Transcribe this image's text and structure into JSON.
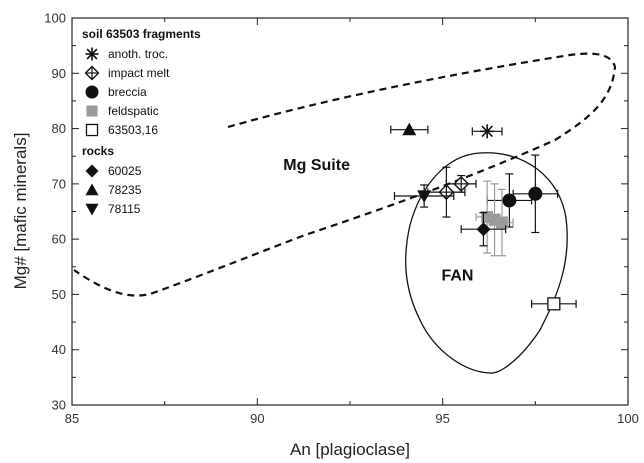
{
  "chart_data": {
    "type": "scatter",
    "xlabel": "An [plagioclase]",
    "ylabel": "Mg# [mafic minerals]",
    "xlim": [
      85,
      100
    ],
    "ylim": [
      30,
      100
    ],
    "x_ticks": [
      "85",
      "90",
      "95",
      "100"
    ],
    "y_ticks": [
      "30",
      "40",
      "50",
      "60",
      "70",
      "80",
      "90",
      "100"
    ],
    "grid": false,
    "legend": {
      "placement": "top-left",
      "group1_title": "soil 63503 fragments",
      "group2_title": "rocks"
    },
    "regions": [
      {
        "name": "Mg Suite",
        "style": "dashed",
        "label_x": 91.6,
        "label_y": 72.5
      },
      {
        "name": "FAN",
        "style": "solid",
        "label_x": 95.4,
        "label_y": 52.5
      }
    ],
    "series": [
      {
        "name": "anoth. troc.",
        "marker": "asterisk",
        "color": "#111111",
        "points": [
          {
            "x": 96.2,
            "y": 79.5,
            "xerr": 0.4,
            "yerr": 0
          }
        ]
      },
      {
        "name": "impact melt",
        "marker": "crossed-diamond",
        "color": "#111111",
        "points": [
          {
            "x": 95.5,
            "y": 70.0,
            "xerr": 0.4,
            "yerr": 1.5
          },
          {
            "x": 95.1,
            "y": 68.5,
            "xerr": 0.5,
            "yerr": 4.5
          }
        ]
      },
      {
        "name": "breccia",
        "marker": "circle",
        "color": "#111111",
        "points": [
          {
            "x": 96.8,
            "y": 67.0,
            "xerr": 0.6,
            "yerr": 4.8
          },
          {
            "x": 97.5,
            "y": 68.2,
            "xerr": 0.6,
            "yerr": 7.0
          }
        ]
      },
      {
        "name": "feldspatic",
        "marker": "square",
        "color": "#9a9a9a",
        "points": [
          {
            "x": 96.2,
            "y": 64.0,
            "xerr": 0.3,
            "yerr": 6.5
          },
          {
            "x": 96.4,
            "y": 63.5,
            "xerr": 0.3,
            "yerr": 6.5
          },
          {
            "x": 96.6,
            "y": 63.0,
            "xerr": 0.3,
            "yerr": 6.0
          }
        ]
      },
      {
        "name": "63503,16",
        "marker": "open-square",
        "color": "#111111",
        "points": [
          {
            "x": 98.0,
            "y": 48.3,
            "xerr": 0.6,
            "yerr": 0
          }
        ]
      },
      {
        "name": "60025",
        "marker": "diamond",
        "color": "#111111",
        "points": [
          {
            "x": 96.1,
            "y": 61.8,
            "xerr": 0.6,
            "yerr": 3.0
          }
        ]
      },
      {
        "name": "78235",
        "marker": "triangle-up",
        "color": "#111111",
        "points": [
          {
            "x": 94.1,
            "y": 79.8,
            "xerr": 0.5,
            "yerr": 0
          }
        ]
      },
      {
        "name": "78115",
        "marker": "triangle-down",
        "color": "#111111",
        "points": [
          {
            "x": 94.5,
            "y": 67.8,
            "xerr": 0.8,
            "yerr": 2.0
          }
        ]
      }
    ]
  }
}
